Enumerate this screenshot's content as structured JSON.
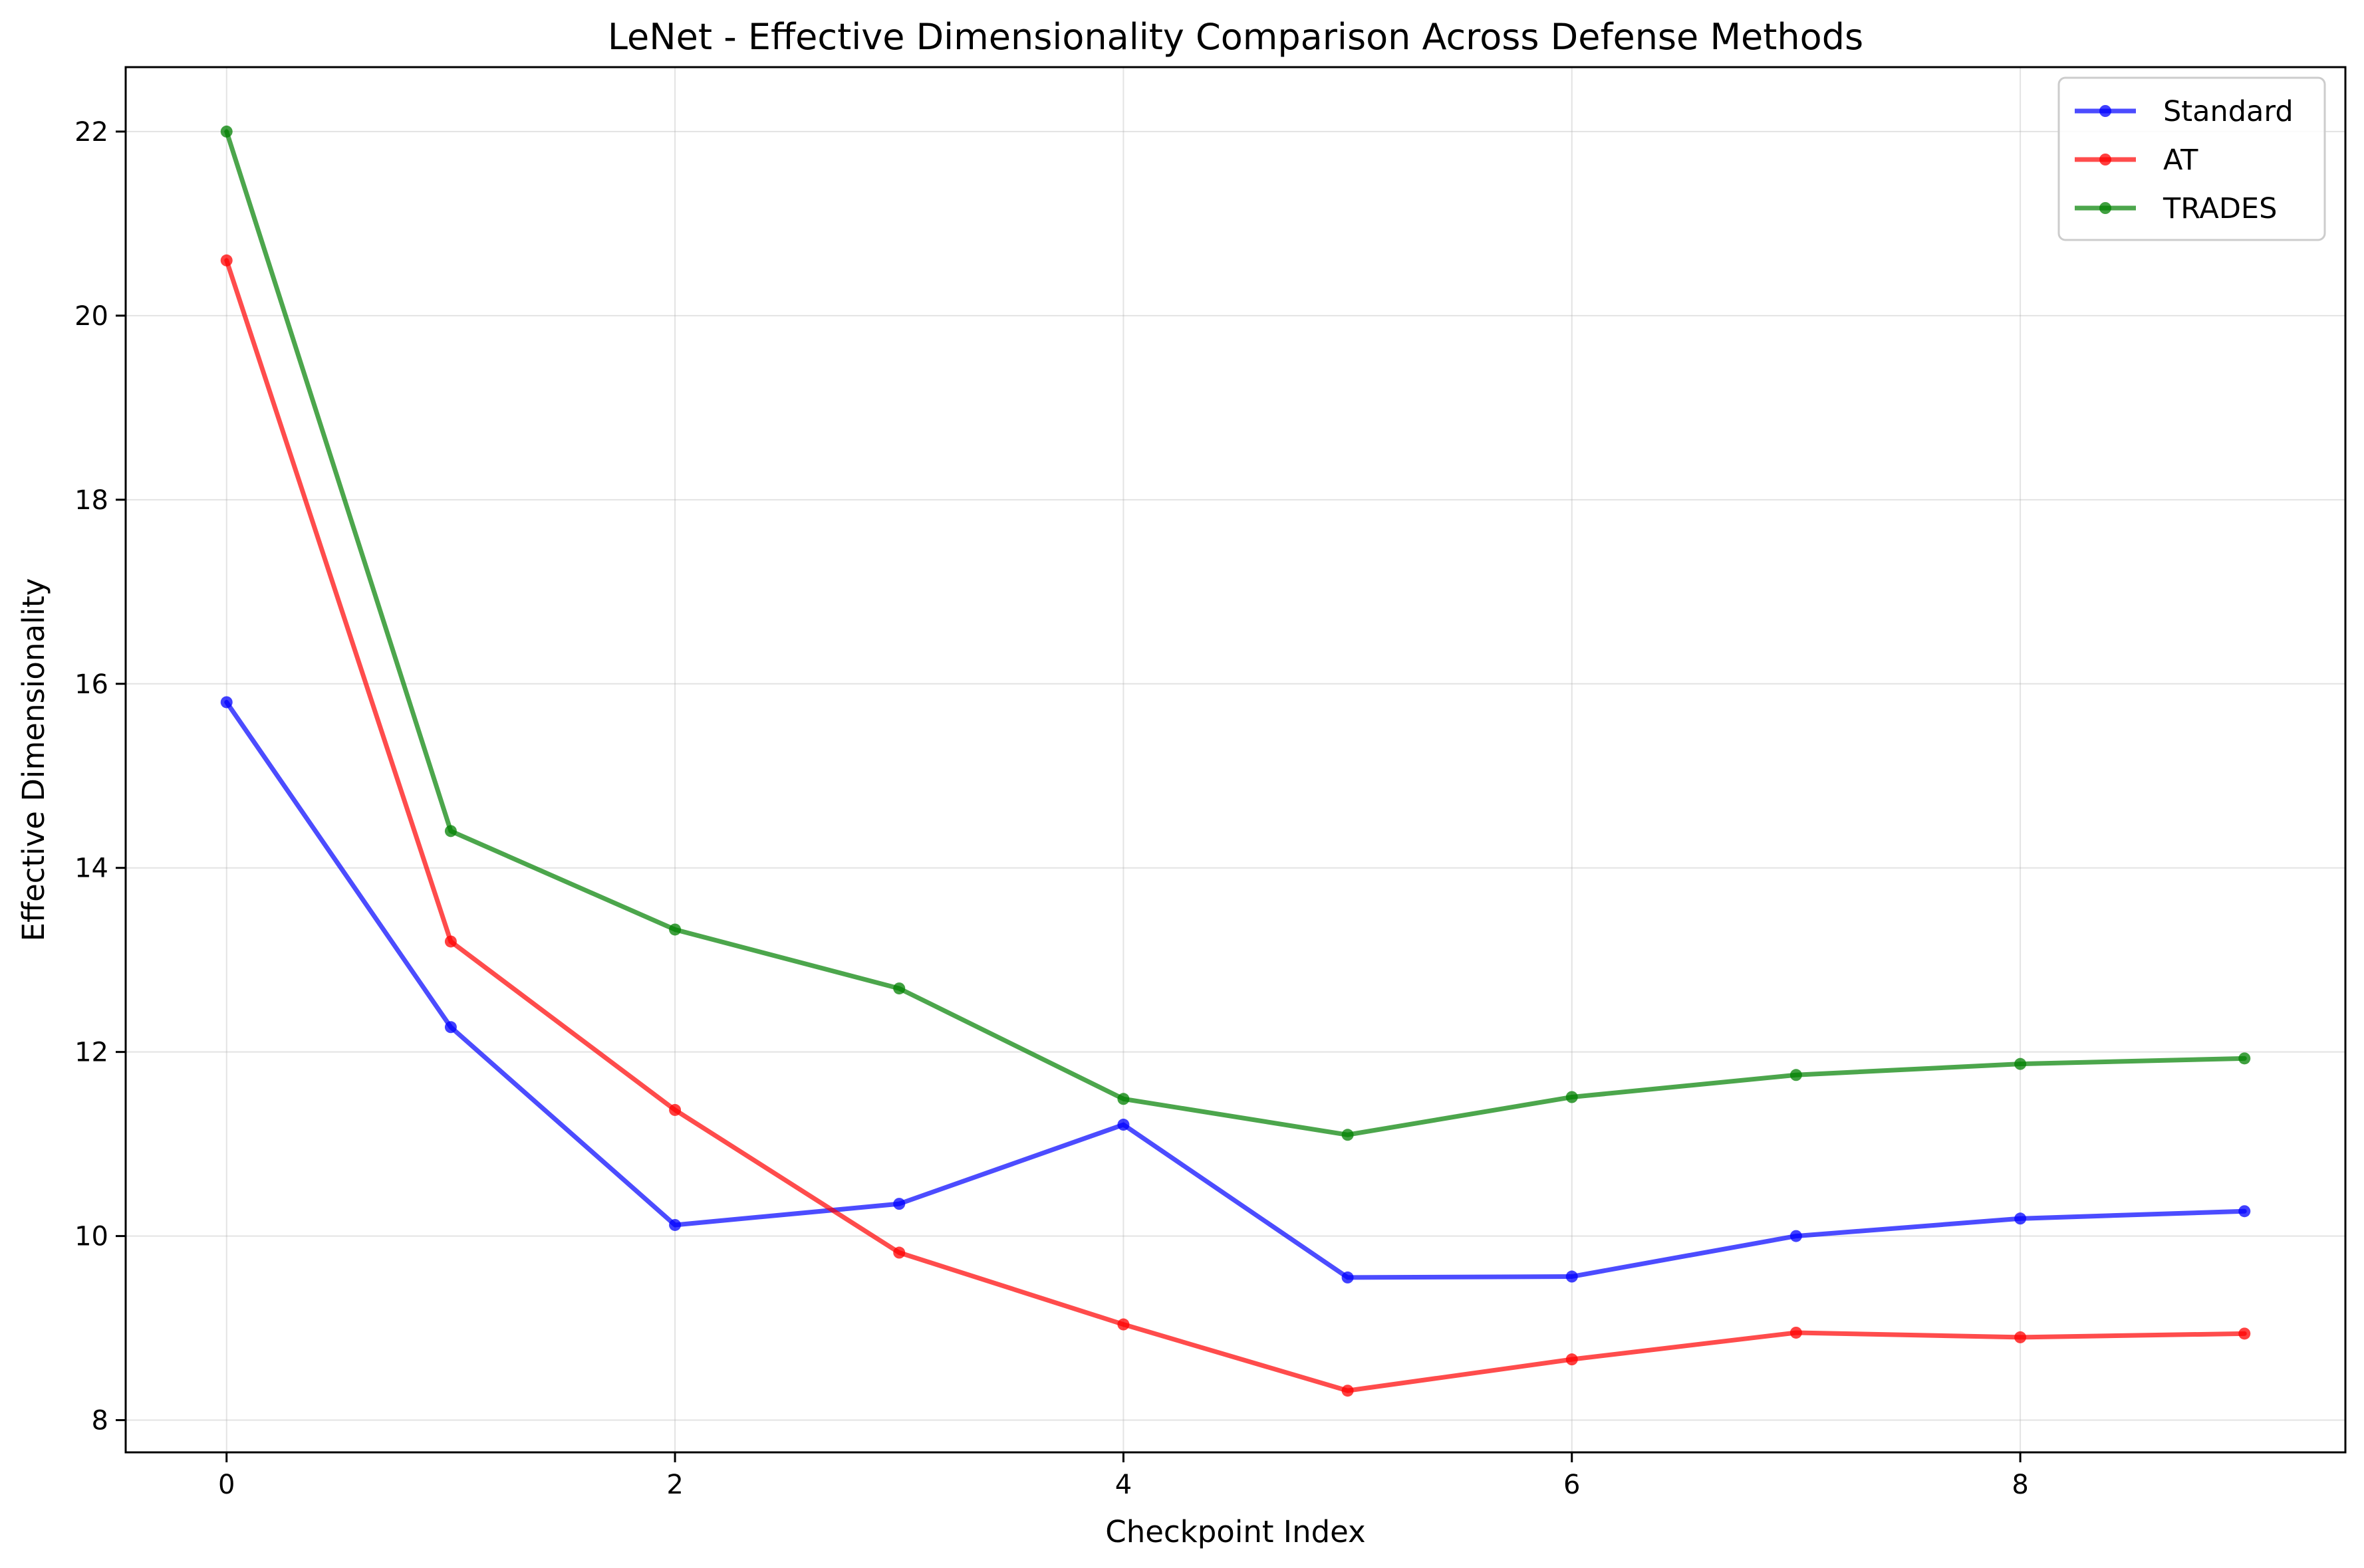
{
  "chart_data": {
    "type": "line",
    "title": "LeNet - Effective Dimensionality Comparison Across Defense Methods",
    "xlabel": "Checkpoint Index",
    "ylabel": "Effective Dimensionality",
    "x": [
      0,
      1,
      2,
      3,
      4,
      5,
      6,
      7,
      8,
      9
    ],
    "xlim": [
      -0.45,
      9.45
    ],
    "ylim": [
      7.65,
      22.7
    ],
    "xticks": [
      0,
      2,
      4,
      6,
      8
    ],
    "yticks": [
      8,
      10,
      12,
      14,
      16,
      18,
      20,
      22
    ],
    "grid": true,
    "legend_position": "top-right",
    "series": [
      {
        "name": "Standard",
        "color": "#0000ff",
        "values": [
          15.8,
          12.27,
          10.12,
          10.35,
          11.21,
          9.55,
          9.56,
          10.0,
          10.19,
          10.27
        ]
      },
      {
        "name": "AT",
        "color": "#ff0000",
        "values": [
          20.6,
          13.2,
          11.37,
          9.82,
          9.04,
          8.32,
          8.66,
          8.95,
          8.9,
          8.94
        ]
      },
      {
        "name": "TRADES",
        "color": "#008000",
        "values": [
          22.0,
          14.4,
          13.33,
          12.69,
          11.49,
          11.1,
          11.51,
          11.75,
          11.87,
          11.93
        ]
      }
    ]
  }
}
